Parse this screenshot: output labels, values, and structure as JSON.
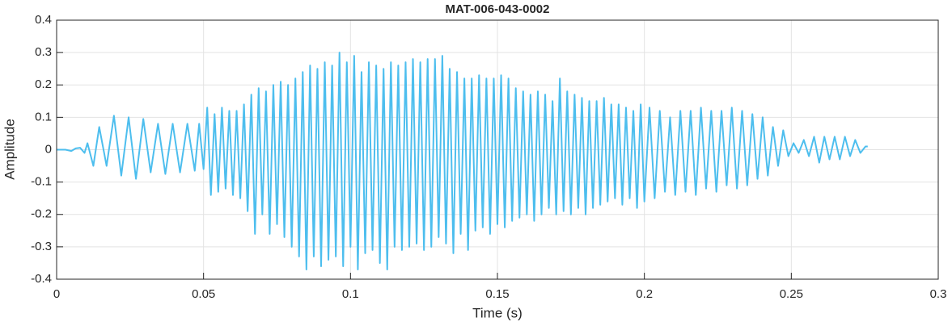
{
  "chart_data": {
    "type": "line",
    "title": "MAT-006-043-0002",
    "x_label": "Time (s)",
    "y_label": "Amplitude",
    "xlim": [
      0,
      0.3
    ],
    "xticks": [
      0,
      0.05,
      0.1,
      0.15,
      0.2,
      0.25,
      0.3
    ],
    "ylim": [
      -0.4,
      0.4
    ],
    "yticks": [
      -0.4,
      -0.3,
      -0.2,
      -0.1,
      0,
      0.1,
      0.2,
      0.3,
      0.4
    ],
    "grid": true,
    "color": "#4dbeee",
    "x": [
      0,
      0.003,
      0.005,
      0.0065,
      0.008,
      0.0095,
      0.0105,
      0.0125,
      0.0145,
      0.017,
      0.0195,
      0.022,
      0.0245,
      0.027,
      0.0295,
      0.032,
      0.0345,
      0.037,
      0.0395,
      0.042,
      0.0445,
      0.047,
      0.0485,
      0.05,
      0.05125,
      0.0525,
      0.05375,
      0.055,
      0.05625,
      0.0575,
      0.05875,
      0.06,
      0.06125,
      0.0625,
      0.06375,
      0.065,
      0.06625,
      0.0675,
      0.06875,
      0.07,
      0.07125,
      0.0725,
      0.07375,
      0.075,
      0.07625,
      0.0775,
      0.07875,
      0.08,
      0.08125,
      0.0825,
      0.08375,
      0.085,
      0.08625,
      0.0875,
      0.08875,
      0.09,
      0.09125,
      0.0925,
      0.09375,
      0.095,
      0.09625,
      0.0975,
      0.09875,
      0.1,
      0.10125,
      0.1025,
      0.10375,
      0.105,
      0.10625,
      0.1075,
      0.10875,
      0.11,
      0.11125,
      0.1125,
      0.11375,
      0.115,
      0.11625,
      0.1175,
      0.11875,
      0.12,
      0.12125,
      0.1225,
      0.12375,
      0.125,
      0.12625,
      0.1275,
      0.12875,
      0.13,
      0.13125,
      0.1325,
      0.13375,
      0.135,
      0.13625,
      0.1375,
      0.13875,
      0.14,
      0.14125,
      0.1425,
      0.14375,
      0.145,
      0.14625,
      0.1475,
      0.14875,
      0.15,
      0.15125,
      0.1525,
      0.15375,
      0.155,
      0.15625,
      0.1575,
      0.15875,
      0.16,
      0.16125,
      0.1625,
      0.16375,
      0.165,
      0.16625,
      0.1675,
      0.16875,
      0.17,
      0.17125,
      0.1725,
      0.17375,
      0.175,
      0.17625,
      0.1775,
      0.17875,
      0.18,
      0.18125,
      0.1825,
      0.18375,
      0.185,
      0.18625,
      0.1875,
      0.18875,
      0.19,
      0.19125,
      0.1925,
      0.19375,
      0.195,
      0.19625,
      0.1975,
      0.19875,
      0.2,
      0.20175,
      0.2035,
      0.20525,
      0.207,
      0.20875,
      0.2105,
      0.21225,
      0.214,
      0.21575,
      0.2175,
      0.21925,
      0.221,
      0.22275,
      0.2245,
      0.22625,
      0.228,
      0.22975,
      0.2315,
      0.23325,
      0.235,
      0.23675,
      0.2385,
      0.24025,
      0.242,
      0.24375,
      0.2455,
      0.24725,
      0.249,
      0.25075,
      0.2525,
      0.25425,
      0.256,
      0.25775,
      0.2595,
      0.26125,
      0.263,
      0.26475,
      0.2665,
      0.26825,
      0.27,
      0.27175,
      0.2735,
      0.27525,
      0.276
    ],
    "values": [
      0,
      0,
      -0.004,
      0.004,
      0.006,
      -0.01,
      0.02,
      -0.05,
      0.07,
      -0.05,
      0.105,
      -0.08,
      0.1,
      -0.09,
      0.095,
      -0.07,
      0.08,
      -0.075,
      0.08,
      -0.07,
      0.08,
      -0.065,
      0.08,
      -0.06,
      0.13,
      -0.14,
      0.11,
      -0.13,
      0.13,
      -0.12,
      0.12,
      -0.14,
      0.12,
      -0.15,
      0.14,
      -0.19,
      0.17,
      -0.26,
      0.19,
      -0.2,
      0.18,
      -0.26,
      0.2,
      -0.23,
      0.21,
      -0.27,
      0.2,
      -0.3,
      0.22,
      -0.33,
      0.24,
      -0.37,
      0.26,
      -0.33,
      0.25,
      -0.36,
      0.27,
      -0.34,
      0.26,
      -0.33,
      0.3,
      -0.36,
      0.27,
      -0.3,
      0.29,
      -0.37,
      0.24,
      -0.32,
      0.27,
      -0.31,
      0.26,
      -0.35,
      0.25,
      -0.37,
      0.27,
      -0.3,
      0.26,
      -0.31,
      0.27,
      -0.3,
      0.28,
      -0.29,
      0.27,
      -0.31,
      0.28,
      -0.3,
      0.28,
      -0.27,
      0.29,
      -0.29,
      0.25,
      -0.32,
      0.24,
      -0.26,
      0.22,
      -0.31,
      0.22,
      -0.25,
      0.23,
      -0.24,
      0.22,
      -0.26,
      0.22,
      -0.23,
      0.23,
      -0.24,
      0.22,
      -0.22,
      0.19,
      -0.21,
      0.18,
      -0.2,
      0.17,
      -0.22,
      0.18,
      -0.2,
      0.17,
      -0.18,
      0.15,
      -0.2,
      0.22,
      -0.19,
      0.18,
      -0.2,
      0.17,
      -0.18,
      0.16,
      -0.2,
      0.15,
      -0.18,
      0.15,
      -0.17,
      0.16,
      -0.16,
      0.14,
      -0.15,
      0.14,
      -0.17,
      0.13,
      -0.15,
      0.12,
      -0.18,
      0.14,
      -0.16,
      0.13,
      -0.15,
      0.12,
      -0.13,
      0.1,
      -0.14,
      0.12,
      -0.13,
      0.12,
      -0.14,
      0.13,
      -0.12,
      0.12,
      -0.13,
      0.12,
      -0.11,
      0.13,
      -0.12,
      0.12,
      -0.11,
      0.11,
      -0.09,
      0.1,
      -0.08,
      0.07,
      -0.05,
      0.06,
      -0.02,
      0.02,
      -0.01,
      0.03,
      -0.02,
      0.04,
      -0.04,
      0.04,
      -0.03,
      0.04,
      -0.03,
      0.04,
      -0.02,
      0.03,
      -0.01,
      0.01,
      0.01
    ]
  }
}
